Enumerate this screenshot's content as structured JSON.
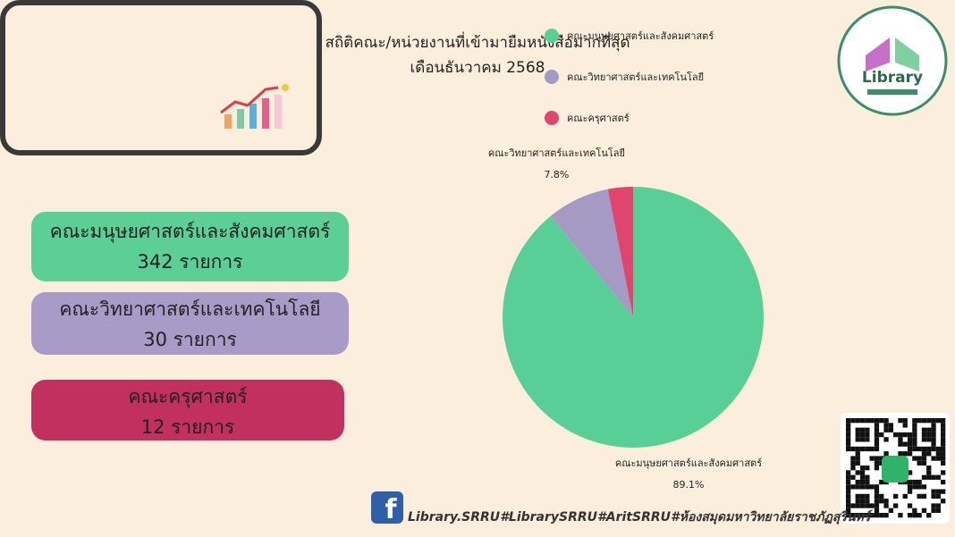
{
  "header": {
    "line1": "สถิติคณะ/หน่วยงานที่เข้ามายืมหนังสือมากที่สุด",
    "line2": "เดือนธันวาคม 2568"
  },
  "cards": [
    {
      "label": "คณะมนุษยศาสตร์และสังคมศาสตร์",
      "count": "342 รายการ"
    },
    {
      "label": "คณะวิทยาศาสตร์และเทคโนโลยี",
      "count": "30 รายการ"
    },
    {
      "label": "คณะครุศาสตร์",
      "count": "12 รายการ"
    }
  ],
  "chart_data": {
    "type": "pie",
    "categories": [
      "คณะมนุษยศาสตร์และสังคมศาสตร์",
      "คณะวิทยาศาสตร์และเทคโนโลยี",
      "คณะครุศาสตร์"
    ],
    "values": [
      89.1,
      7.8,
      3.1
    ],
    "value_labels": [
      "89.1%",
      "7.8%",
      null
    ],
    "colors": [
      "#58cf97",
      "#a49ac4",
      "#e04570"
    ],
    "legend": "top-right"
  },
  "logo": {
    "text": "Library"
  },
  "footer": {
    "text": "Library.SRRU#LibrarySRRU#AritSRRU#ห้องสมุดมหาวิทยาลัยราชภัฏสุรินทร์"
  }
}
